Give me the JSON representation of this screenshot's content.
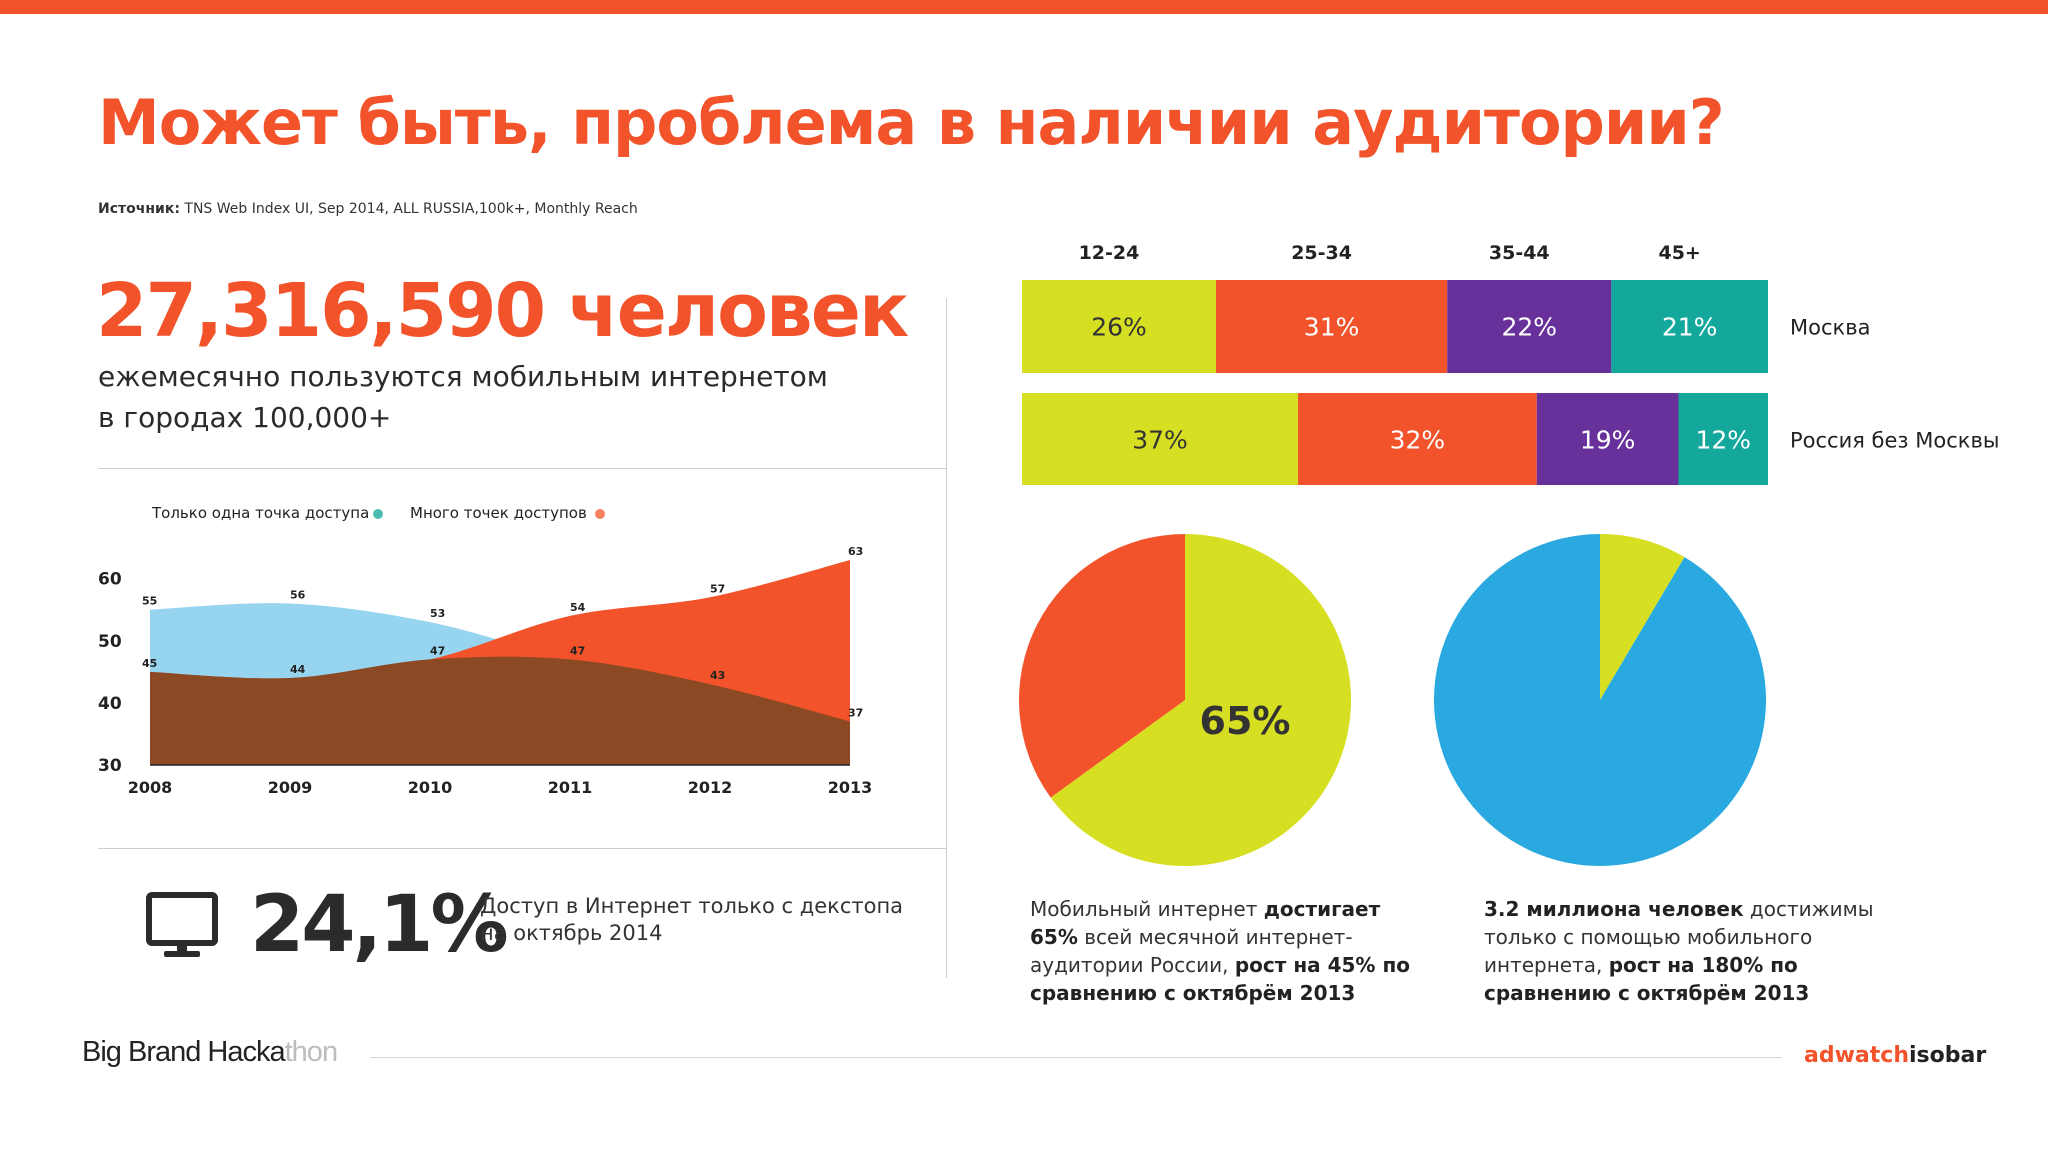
{
  "header": {
    "title": "Может быть, проблема в наличии аудитории?",
    "source_label": "Источник:",
    "source_text": " TNS Web Index UI, Sep 2014, ALL RUSSIA,100k+, Monthly Reach"
  },
  "headline": {
    "number": "27,316,590 человек",
    "line1": "ежемесячно пользуются мобильным интернетом",
    "line2": "в городах 100,000+"
  },
  "desktop_stat": {
    "value": "24,1%",
    "line1": "Доступ в Интернет только с декстопа",
    "line2": "на октябрь 2014"
  },
  "pie_captions": {
    "left": {
      "t1": "Мобильный интернет ",
      "b1": "достигает 65%",
      "t2": " всей месячной интернет-аудитории России, ",
      "b2": "рост на 45% по сравнению с октябрём 2013"
    },
    "right": {
      "b1": "3.2 миллиона человек",
      "t1": " достижимы только с помощью мобильного интернета, ",
      "b2": "рост на 180% по сравнению с октябрём 2013"
    }
  },
  "footer": {
    "left_main": "Big Brand Hacka",
    "left_fade": "thon",
    "right_a": "adwatch",
    "right_b": "isobar"
  },
  "colors": {
    "accent": "#f2532a",
    "lime": "#d7df23",
    "purple": "#67309a",
    "teal": "#14a89c",
    "sky": "#29a9e0",
    "light_blue": "#97d4f0",
    "brown": "#8b4a24",
    "legend_teal": "#4cbdb0",
    "legend_orange": "#f5805d"
  },
  "chart_data": [
    {
      "type": "area",
      "x": [
        "2008",
        "2009",
        "2010",
        "2011",
        "2012",
        "2013"
      ],
      "series": [
        {
          "name": "Только одна точка доступа",
          "values": [
            55,
            56,
            53,
            47,
            43,
            37
          ]
        },
        {
          "name": "Много точек доступов",
          "values": [
            45,
            44,
            47,
            54,
            57,
            63
          ]
        }
      ],
      "ylim": [
        30,
        63
      ],
      "yticks": [
        "60",
        "50",
        "40",
        "30"
      ],
      "legend": "top"
    },
    {
      "type": "bar",
      "stacked": true,
      "orientation": "horizontal",
      "categories": [
        "Москва",
        "Россия без Москвы"
      ],
      "segments": [
        "12-24",
        "25-34",
        "35-44",
        "45+"
      ],
      "values": [
        [
          26,
          31,
          22,
          21
        ],
        [
          37,
          32,
          19,
          12
        ]
      ],
      "labels": [
        [
          "26%",
          "31%",
          "22%",
          "21%"
        ],
        [
          "37%",
          "32%",
          "19%",
          "12%"
        ]
      ]
    },
    {
      "type": "pie",
      "slices": [
        {
          "label": "65%",
          "value": 65
        },
        {
          "label": "",
          "value": 35
        }
      ]
    },
    {
      "type": "pie",
      "slices": [
        {
          "label": "3.2M",
          "value": 8.5
        },
        {
          "label": "",
          "value": 91.5
        }
      ]
    }
  ]
}
